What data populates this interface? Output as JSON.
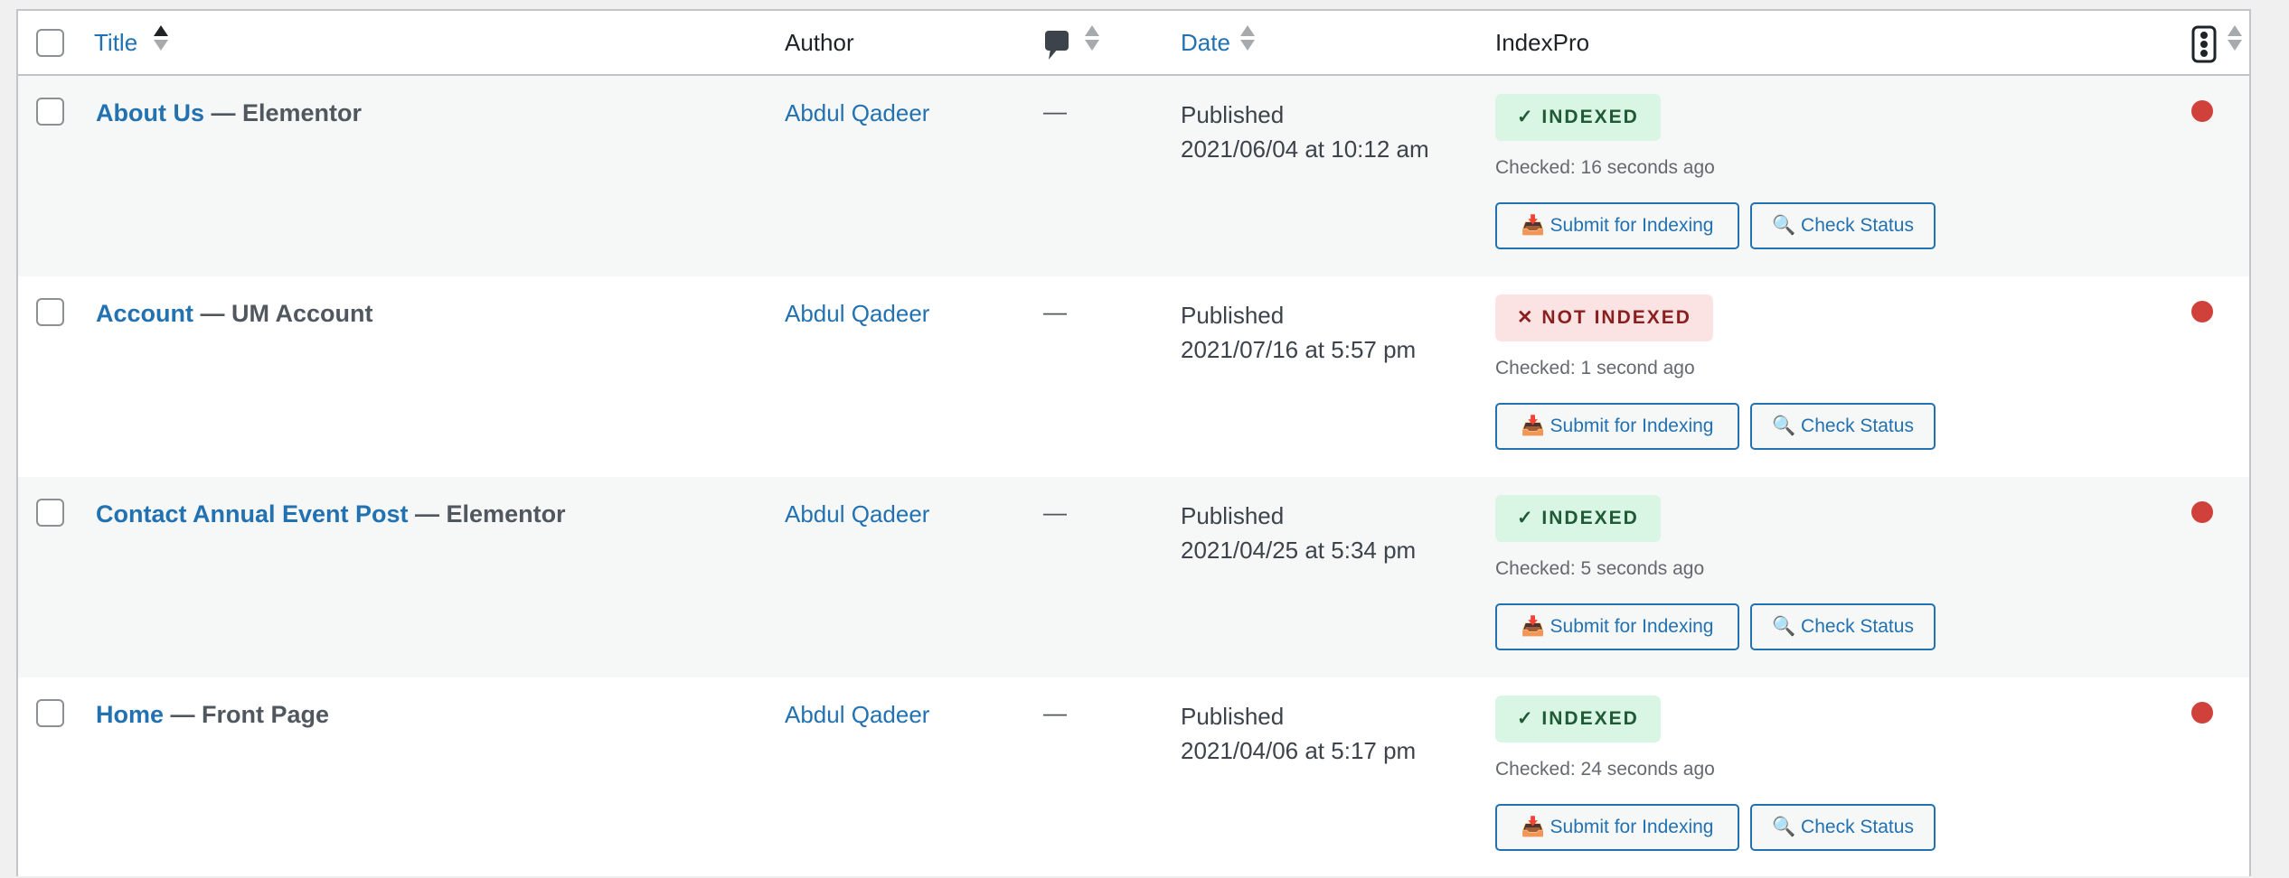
{
  "header": {
    "title": "Title",
    "author": "Author",
    "comments_icon": "comment-bubble-icon",
    "date": "Date",
    "indexpro": "IndexPro",
    "status_icon": "traffic-light-icon"
  },
  "rows": [
    {
      "title": "About Us",
      "suffix": " — Elementor",
      "author": "Abdul Qadeer",
      "comments": "—",
      "status": "Published",
      "date": "2021/06/04 at 10:12 am",
      "badge": "✓ INDEXED",
      "badge_type": "indexed",
      "checked": "Checked: 16 seconds ago",
      "submit": "Submit for Indexing",
      "check": "Check Status"
    },
    {
      "title": "Account",
      "suffix": " — UM Account",
      "author": "Abdul Qadeer",
      "comments": "—",
      "status": "Published",
      "date": "2021/07/16 at 5:57 pm",
      "badge": "✕ NOT INDEXED",
      "badge_type": "not-indexed",
      "checked": "Checked: 1 second ago",
      "submit": "Submit for Indexing",
      "check": "Check Status"
    },
    {
      "title": "Contact Annual Event Post",
      "suffix": " — Elementor",
      "author": "Abdul Qadeer",
      "comments": "—",
      "status": "Published",
      "date": "2021/04/25 at 5:34 pm",
      "badge": "✓ INDEXED",
      "badge_type": "indexed",
      "checked": "Checked: 5 seconds ago",
      "submit": "Submit for Indexing",
      "check": "Check Status"
    },
    {
      "title": "Home",
      "suffix": " — Front Page",
      "author": "Abdul Qadeer",
      "comments": "—",
      "status": "Published",
      "date": "2021/04/06 at 5:17 pm",
      "badge": "✓ INDEXED",
      "badge_type": "indexed",
      "checked": "Checked: 24 seconds ago",
      "submit": "Submit for Indexing",
      "check": "Check Status"
    }
  ],
  "colors": {
    "link": "#2271b1",
    "indexed_bg": "#d9f5e3",
    "not_indexed_bg": "#fbe3e3",
    "status_dot": "#d0413b"
  }
}
